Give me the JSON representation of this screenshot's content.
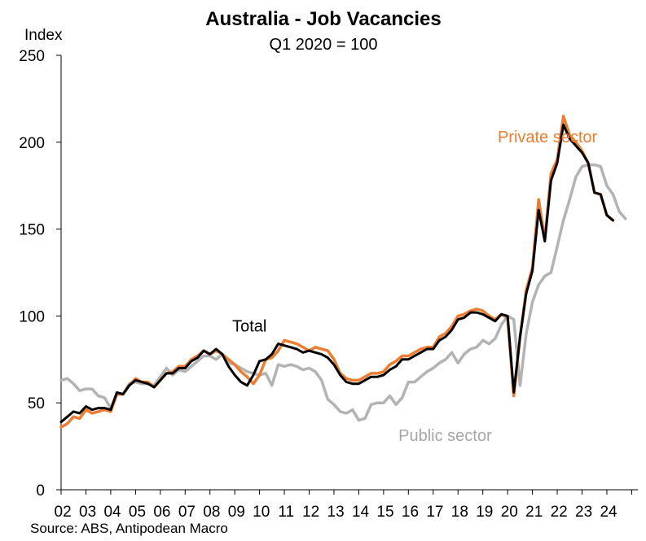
{
  "chart_data": {
    "type": "line",
    "title": "Australia - Job Vacancies",
    "subtitle": "Q1 2020 = 100",
    "ylabel": "Index",
    "xlabel": "",
    "source": "Source: ABS, Antipodean Macro",
    "ylim": [
      0,
      250
    ],
    "yticks": [
      "0",
      "50",
      "100",
      "150",
      "200",
      "250"
    ],
    "xlim": [
      2002.0,
      2025.25
    ],
    "xticks": [
      "02",
      "03",
      "04",
      "05",
      "06",
      "07",
      "08",
      "09",
      "10",
      "11",
      "12",
      "13",
      "14",
      "15",
      "16",
      "17",
      "18",
      "19",
      "20",
      "21",
      "22",
      "23",
      "24"
    ],
    "grid": false,
    "legend": "none (direct labels)",
    "series": [
      {
        "name": "Public sector",
        "color": "#b3b3b3",
        "points": [
          [
            2002.0,
            63
          ],
          [
            2002.25,
            64
          ],
          [
            2002.5,
            61
          ],
          [
            2002.75,
            57
          ],
          [
            2003.0,
            58
          ],
          [
            2003.25,
            58
          ],
          [
            2003.5,
            54
          ],
          [
            2003.75,
            53
          ],
          [
            2004.0,
            47
          ],
          [
            2004.25,
            55
          ],
          [
            2004.5,
            55
          ],
          [
            2004.75,
            61
          ],
          [
            2005.0,
            62
          ],
          [
            2005.25,
            61
          ],
          [
            2005.5,
            61
          ],
          [
            2005.75,
            60
          ],
          [
            2006.0,
            65
          ],
          [
            2006.25,
            70
          ],
          [
            2006.5,
            66
          ],
          [
            2006.75,
            69
          ],
          [
            2007.0,
            68
          ],
          [
            2007.25,
            71
          ],
          [
            2007.5,
            74
          ],
          [
            2007.75,
            77
          ],
          [
            2008.0,
            77
          ],
          [
            2008.25,
            75
          ],
          [
            2008.5,
            78
          ],
          [
            2008.75,
            73
          ],
          [
            2009.0,
            72
          ],
          [
            2009.25,
            70
          ],
          [
            2009.5,
            68
          ],
          [
            2009.75,
            67
          ],
          [
            2010.0,
            66
          ],
          [
            2010.25,
            67
          ],
          [
            2010.5,
            60
          ],
          [
            2010.75,
            72
          ],
          [
            2011.0,
            71
          ],
          [
            2011.25,
            72
          ],
          [
            2011.5,
            71
          ],
          [
            2011.75,
            69
          ],
          [
            2012.0,
            70
          ],
          [
            2012.25,
            68
          ],
          [
            2012.5,
            63
          ],
          [
            2012.75,
            52
          ],
          [
            2013.0,
            49
          ],
          [
            2013.25,
            45
          ],
          [
            2013.5,
            44
          ],
          [
            2013.75,
            46
          ],
          [
            2014.0,
            40
          ],
          [
            2014.25,
            41
          ],
          [
            2014.5,
            49
          ],
          [
            2014.75,
            50
          ],
          [
            2015.0,
            50
          ],
          [
            2015.25,
            54
          ],
          [
            2015.5,
            49
          ],
          [
            2015.75,
            53
          ],
          [
            2016.0,
            62
          ],
          [
            2016.25,
            62
          ],
          [
            2016.5,
            65
          ],
          [
            2016.75,
            68
          ],
          [
            2017.0,
            70
          ],
          [
            2017.25,
            73
          ],
          [
            2017.5,
            75
          ],
          [
            2017.75,
            79
          ],
          [
            2018.0,
            73
          ],
          [
            2018.25,
            78
          ],
          [
            2018.5,
            81
          ],
          [
            2018.75,
            82
          ],
          [
            2019.0,
            86
          ],
          [
            2019.25,
            84
          ],
          [
            2019.5,
            87
          ],
          [
            2019.75,
            95
          ],
          [
            2020.0,
            100
          ],
          [
            2020.25,
            98
          ],
          [
            2020.5,
            60
          ],
          [
            2020.75,
            90
          ],
          [
            2021.0,
            108
          ],
          [
            2021.25,
            118
          ],
          [
            2021.5,
            123
          ],
          [
            2021.75,
            125
          ],
          [
            2022.0,
            140
          ],
          [
            2022.25,
            155
          ],
          [
            2022.5,
            167
          ],
          [
            2022.75,
            180
          ],
          [
            2023.0,
            186
          ],
          [
            2023.25,
            187
          ],
          [
            2023.5,
            187
          ],
          [
            2023.75,
            186
          ],
          [
            2024.0,
            175
          ],
          [
            2024.25,
            170
          ],
          [
            2024.5,
            160
          ],
          [
            2024.75,
            156
          ]
        ]
      },
      {
        "name": "Private sector",
        "color": "#ed7d31",
        "points": [
          [
            2002.0,
            36
          ],
          [
            2002.25,
            38
          ],
          [
            2002.5,
            42
          ],
          [
            2002.75,
            41
          ],
          [
            2003.0,
            46
          ],
          [
            2003.25,
            44
          ],
          [
            2003.5,
            45
          ],
          [
            2003.75,
            46
          ],
          [
            2004.0,
            45
          ],
          [
            2004.25,
            55
          ],
          [
            2004.5,
            55
          ],
          [
            2004.75,
            60
          ],
          [
            2005.0,
            64
          ],
          [
            2005.25,
            62
          ],
          [
            2005.5,
            62
          ],
          [
            2005.75,
            59
          ],
          [
            2006.0,
            63
          ],
          [
            2006.25,
            67
          ],
          [
            2006.5,
            68
          ],
          [
            2006.75,
            71
          ],
          [
            2007.0,
            71
          ],
          [
            2007.25,
            75
          ],
          [
            2007.5,
            77
          ],
          [
            2007.75,
            80
          ],
          [
            2008.0,
            78
          ],
          [
            2008.25,
            80
          ],
          [
            2008.5,
            78
          ],
          [
            2008.75,
            75
          ],
          [
            2009.0,
            72
          ],
          [
            2009.25,
            68
          ],
          [
            2009.5,
            65
          ],
          [
            2009.75,
            61
          ],
          [
            2010.0,
            66
          ],
          [
            2010.25,
            75
          ],
          [
            2010.5,
            76
          ],
          [
            2010.75,
            80
          ],
          [
            2011.0,
            86
          ],
          [
            2011.25,
            85
          ],
          [
            2011.5,
            84
          ],
          [
            2011.75,
            82
          ],
          [
            2012.0,
            80
          ],
          [
            2012.25,
            82
          ],
          [
            2012.5,
            81
          ],
          [
            2012.75,
            80
          ],
          [
            2013.0,
            75
          ],
          [
            2013.25,
            67
          ],
          [
            2013.5,
            64
          ],
          [
            2013.75,
            63
          ],
          [
            2014.0,
            63
          ],
          [
            2014.25,
            65
          ],
          [
            2014.5,
            67
          ],
          [
            2014.75,
            67
          ],
          [
            2015.0,
            68
          ],
          [
            2015.25,
            72
          ],
          [
            2015.5,
            74
          ],
          [
            2015.75,
            77
          ],
          [
            2016.0,
            77
          ],
          [
            2016.25,
            79
          ],
          [
            2016.5,
            81
          ],
          [
            2016.75,
            82
          ],
          [
            2017.0,
            82
          ],
          [
            2017.25,
            88
          ],
          [
            2017.5,
            90
          ],
          [
            2017.75,
            94
          ],
          [
            2018.0,
            100
          ],
          [
            2018.25,
            101
          ],
          [
            2018.5,
            103
          ],
          [
            2018.75,
            104
          ],
          [
            2019.0,
            103
          ],
          [
            2019.25,
            100
          ],
          [
            2019.5,
            98
          ],
          [
            2019.75,
            101
          ],
          [
            2020.0,
            99
          ],
          [
            2020.25,
            54
          ],
          [
            2020.5,
            88
          ],
          [
            2020.75,
            115
          ],
          [
            2021.0,
            128
          ],
          [
            2021.25,
            167
          ],
          [
            2021.5,
            144
          ],
          [
            2021.75,
            182
          ],
          [
            2022.0,
            190
          ],
          [
            2022.25,
            215
          ],
          [
            2022.5,
            204
          ],
          [
            2022.75,
            200
          ],
          [
            2023.0,
            195
          ],
          [
            2023.25,
            188
          ],
          [
            2023.5,
            171
          ],
          [
            2023.75,
            170
          ],
          [
            2024.0,
            158
          ],
          [
            2024.25,
            155
          ]
        ]
      },
      {
        "name": "Total",
        "color": "#000000",
        "points": [
          [
            2002.0,
            39
          ],
          [
            2002.25,
            42
          ],
          [
            2002.5,
            45
          ],
          [
            2002.75,
            44
          ],
          [
            2003.0,
            48
          ],
          [
            2003.25,
            46
          ],
          [
            2003.5,
            47
          ],
          [
            2003.75,
            47
          ],
          [
            2004.0,
            46
          ],
          [
            2004.25,
            56
          ],
          [
            2004.5,
            55
          ],
          [
            2004.75,
            60
          ],
          [
            2005.0,
            63
          ],
          [
            2005.25,
            62
          ],
          [
            2005.5,
            61
          ],
          [
            2005.75,
            59
          ],
          [
            2006.0,
            63
          ],
          [
            2006.25,
            67
          ],
          [
            2006.5,
            67
          ],
          [
            2006.75,
            70
          ],
          [
            2007.0,
            70
          ],
          [
            2007.25,
            74
          ],
          [
            2007.5,
            76
          ],
          [
            2007.75,
            80
          ],
          [
            2008.0,
            78
          ],
          [
            2008.25,
            81
          ],
          [
            2008.5,
            78
          ],
          [
            2008.75,
            71
          ],
          [
            2009.0,
            66
          ],
          [
            2009.25,
            62
          ],
          [
            2009.5,
            60
          ],
          [
            2009.75,
            66
          ],
          [
            2010.0,
            74
          ],
          [
            2010.25,
            75
          ],
          [
            2010.5,
            78
          ],
          [
            2010.75,
            84
          ],
          [
            2011.0,
            83
          ],
          [
            2011.25,
            82
          ],
          [
            2011.5,
            81
          ],
          [
            2011.75,
            79
          ],
          [
            2012.0,
            80
          ],
          [
            2012.25,
            79
          ],
          [
            2012.5,
            78
          ],
          [
            2012.75,
            76
          ],
          [
            2013.0,
            72
          ],
          [
            2013.25,
            66
          ],
          [
            2013.5,
            62
          ],
          [
            2013.75,
            61
          ],
          [
            2014.0,
            61
          ],
          [
            2014.25,
            63
          ],
          [
            2014.5,
            65
          ],
          [
            2014.75,
            65
          ],
          [
            2015.0,
            66
          ],
          [
            2015.25,
            69
          ],
          [
            2015.5,
            71
          ],
          [
            2015.75,
            75
          ],
          [
            2016.0,
            75
          ],
          [
            2016.25,
            77
          ],
          [
            2016.5,
            79
          ],
          [
            2016.75,
            81
          ],
          [
            2017.0,
            81
          ],
          [
            2017.25,
            86
          ],
          [
            2017.5,
            88
          ],
          [
            2017.75,
            92
          ],
          [
            2018.0,
            98
          ],
          [
            2018.25,
            99
          ],
          [
            2018.5,
            102
          ],
          [
            2018.75,
            102
          ],
          [
            2019.0,
            101
          ],
          [
            2019.25,
            99
          ],
          [
            2019.5,
            97
          ],
          [
            2019.75,
            101
          ],
          [
            2020.0,
            100
          ],
          [
            2020.25,
            56
          ],
          [
            2020.5,
            88
          ],
          [
            2020.75,
            113
          ],
          [
            2021.0,
            126
          ],
          [
            2021.25,
            161
          ],
          [
            2021.5,
            143
          ],
          [
            2021.75,
            178
          ],
          [
            2022.0,
            188
          ],
          [
            2022.25,
            210
          ],
          [
            2022.5,
            202
          ],
          [
            2022.75,
            198
          ],
          [
            2023.0,
            194
          ],
          [
            2023.25,
            188
          ],
          [
            2023.5,
            171
          ],
          [
            2023.75,
            170
          ],
          [
            2024.0,
            158
          ],
          [
            2024.25,
            155
          ]
        ]
      }
    ],
    "annotations": [
      {
        "text": "Total",
        "x": 2008.9,
        "y": 91,
        "color": "#000000"
      },
      {
        "text": "Private sector",
        "x": 2019.6,
        "y": 200,
        "color": "#ed7d31"
      },
      {
        "text": "Public sector",
        "x": 2015.6,
        "y": 28,
        "color": "#a6a6a6"
      }
    ]
  }
}
